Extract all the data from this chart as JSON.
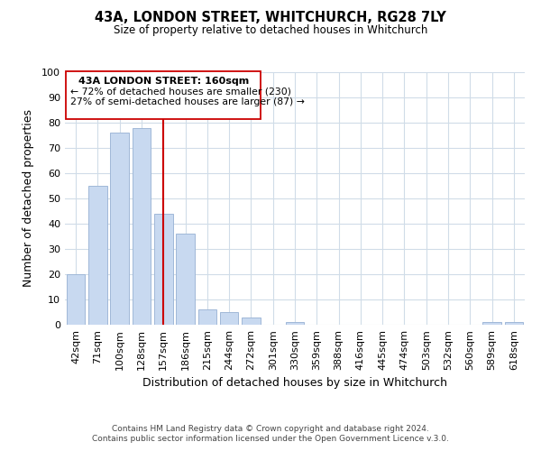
{
  "title": "43A, LONDON STREET, WHITCHURCH, RG28 7LY",
  "subtitle": "Size of property relative to detached houses in Whitchurch",
  "xlabel": "Distribution of detached houses by size in Whitchurch",
  "ylabel": "Number of detached properties",
  "bar_labels": [
    "42sqm",
    "71sqm",
    "100sqm",
    "128sqm",
    "157sqm",
    "186sqm",
    "215sqm",
    "244sqm",
    "272sqm",
    "301sqm",
    "330sqm",
    "359sqm",
    "388sqm",
    "416sqm",
    "445sqm",
    "474sqm",
    "503sqm",
    "532sqm",
    "560sqm",
    "589sqm",
    "618sqm"
  ],
  "bar_values": [
    20,
    55,
    76,
    78,
    44,
    36,
    6,
    5,
    3,
    0,
    1,
    0,
    0,
    0,
    0,
    0,
    0,
    0,
    0,
    1,
    1
  ],
  "bar_color": "#c8d9f0",
  "bar_edge_color": "#a0b8d8",
  "vline_x": 4,
  "vline_color": "#cc0000",
  "ylim": [
    0,
    100
  ],
  "ann_line1": "43A LONDON STREET: 160sqm",
  "ann_line2": "← 72% of detached houses are smaller (230)",
  "ann_line3": "27% of semi-detached houses are larger (87) →",
  "footer_line1": "Contains HM Land Registry data © Crown copyright and database right 2024.",
  "footer_line2": "Contains public sector information licensed under the Open Government Licence v.3.0.",
  "background_color": "#ffffff",
  "grid_color": "#d0dce8"
}
